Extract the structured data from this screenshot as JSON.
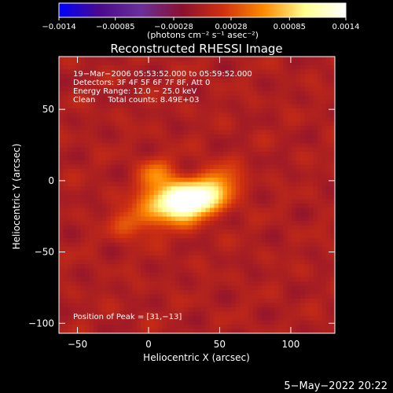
{
  "chart_data": {
    "type": "heatmap",
    "title": "Reconstructed RHESSI Image",
    "xlabel": "Heliocentric X (arcsec)",
    "ylabel": "Heliocentric Y (arcsec)",
    "xlim": [
      -63,
      131
    ],
    "ylim": [
      -107,
      87
    ],
    "x_ticks": [
      {
        "value": -50,
        "label": "−50"
      },
      {
        "value": 0,
        "label": "0"
      },
      {
        "value": 50,
        "label": "50"
      },
      {
        "value": 100,
        "label": "100"
      }
    ],
    "y_ticks": [
      {
        "value": -100,
        "label": "−100"
      },
      {
        "value": -50,
        "label": "−50"
      },
      {
        "value": 0,
        "label": "0"
      },
      {
        "value": 50,
        "label": "50"
      }
    ],
    "colorbar": {
      "range": [
        -0.0014,
        0.0014
      ],
      "ticks": [
        {
          "value": -0.0014,
          "label": "−0.0014"
        },
        {
          "value": -0.00085,
          "label": "−0.00085"
        },
        {
          "value": -0.00028,
          "label": "−0.00028"
        },
        {
          "value": 0.00028,
          "label": "0.00028"
        },
        {
          "value": 0.00085,
          "label": "0.00085"
        },
        {
          "value": 0.0014,
          "label": "0.0014"
        }
      ],
      "unit_label": "(photons cm⁻² s⁻¹ asec⁻²)"
    },
    "annotations": {
      "time_range": "19−Mar−2006 05:53:52.000 to 05:59:52.000",
      "detectors": "Detectors: 3F 4F 5F 6F 7F 8F, Att 0",
      "energy_range": "Energy Range: 12.0 − 25.0 keV",
      "algorithm_counts": "Clean     Total counts: 8.49E+03",
      "peak_position": "Position of Peak = [31,−13]"
    },
    "peak": {
      "x": 31,
      "y": -13
    },
    "sources": [
      {
        "x": 31,
        "y": -13,
        "amp": 0.00135,
        "sx": 12,
        "sy": 8
      },
      {
        "x": 15,
        "y": -17,
        "amp": 0.0009,
        "sx": 14,
        "sy": 10
      },
      {
        "x": 50,
        "y": -3,
        "amp": 0.0006,
        "sx": 10,
        "sy": 9
      },
      {
        "x": 5,
        "y": 4,
        "amp": 0.0005,
        "sx": 8,
        "sy": 8
      },
      {
        "x": -12,
        "y": -30,
        "amp": 0.00035,
        "sx": 10,
        "sy": 8
      }
    ],
    "timestamp": "5−May−2022 20:22"
  },
  "colors": {
    "background": "#000000",
    "text": "#ffffff",
    "colormap": [
      "#0000ff",
      "#4b0a8c",
      "#6a2f9a",
      "#8a1030",
      "#d03010",
      "#ff8a00",
      "#ffff90",
      "#ffffff"
    ]
  }
}
